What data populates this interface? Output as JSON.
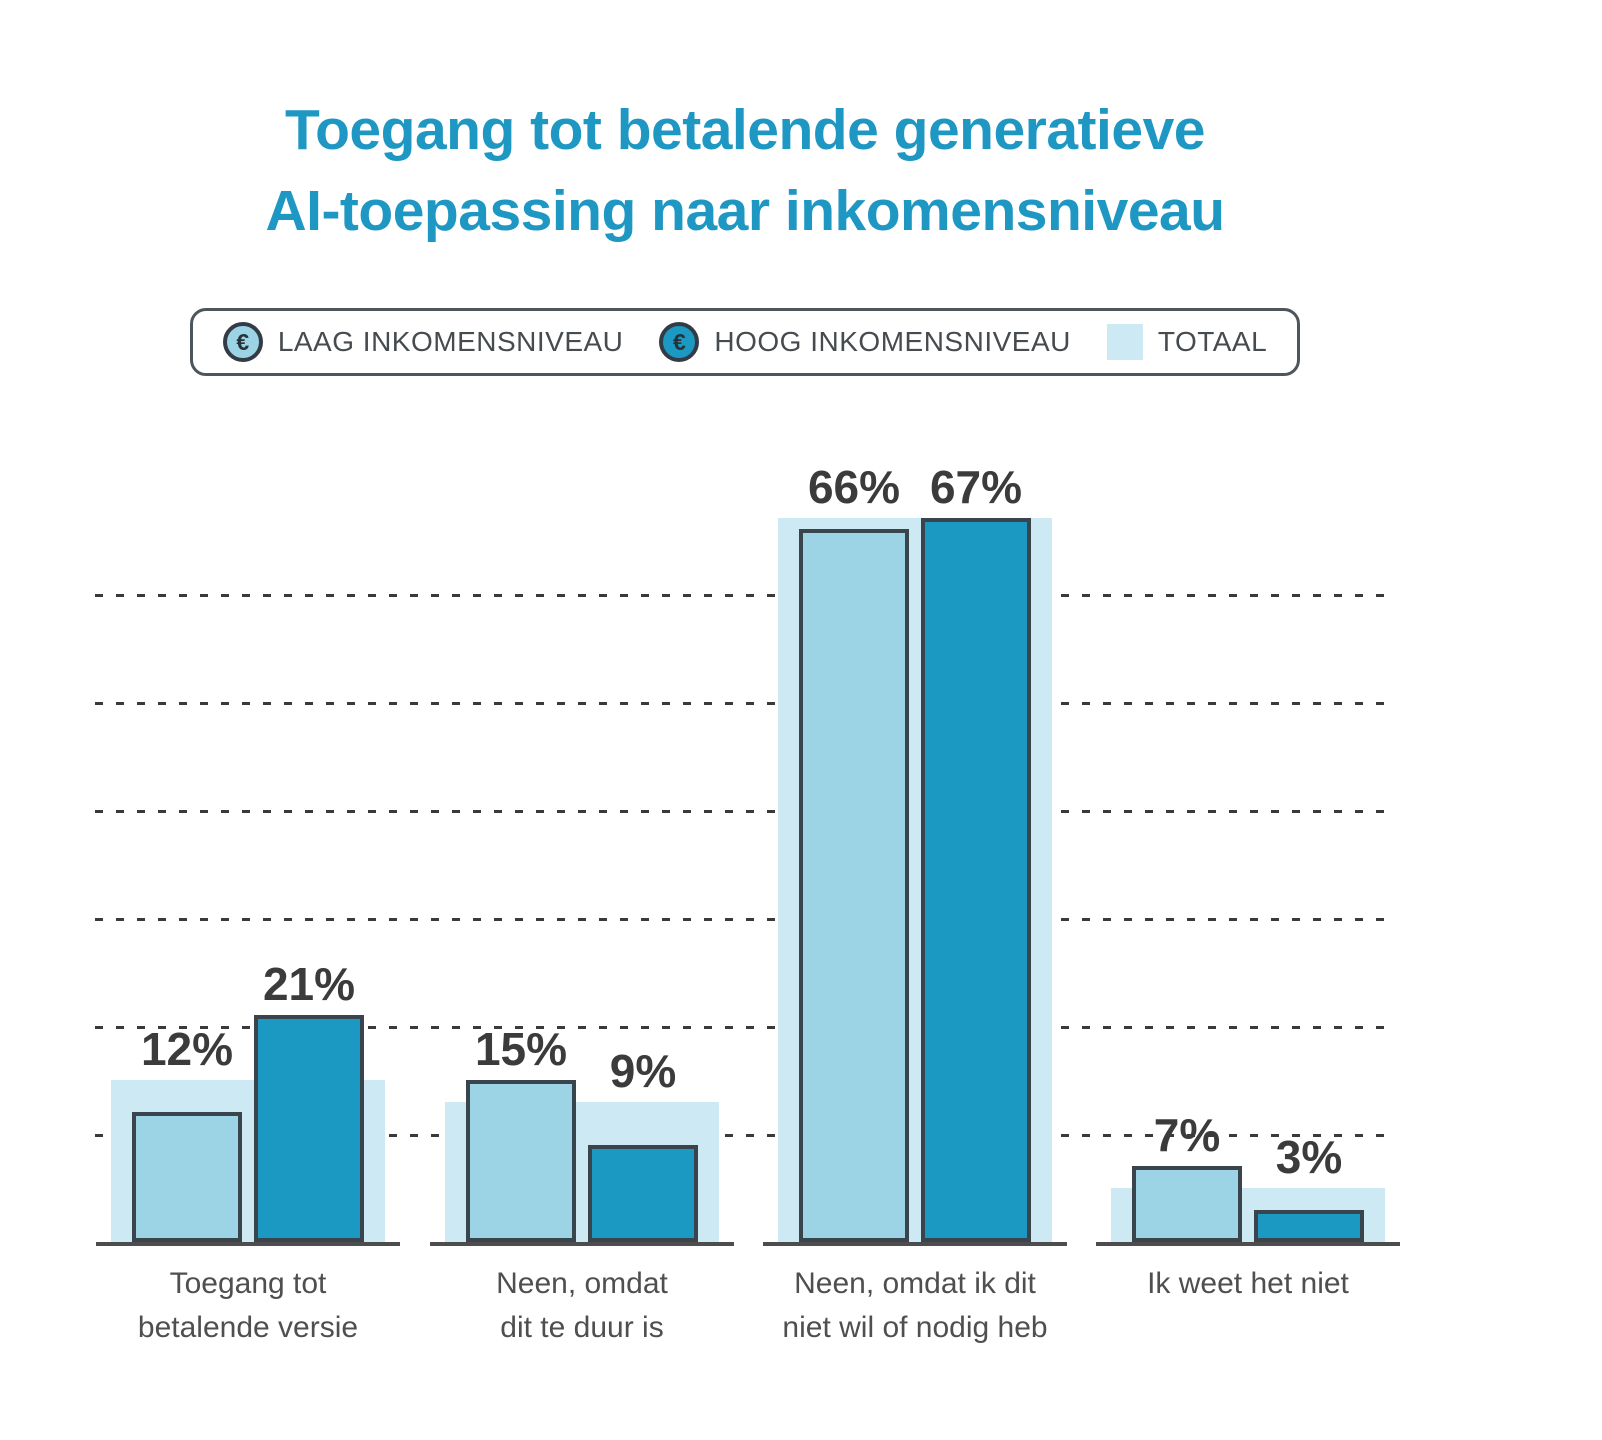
{
  "title": {
    "line1": "Toegang tot betalende generatieve",
    "line2": "AI-toepassing naar inkomensniveau"
  },
  "legend": {
    "euro_symbol": "€",
    "items": [
      {
        "label": "LAAG INKOMENSNIVEAU",
        "icon": "euro-coin-light"
      },
      {
        "label": "HOOG INKOMENSNIVEAU",
        "icon": "euro-coin-dark"
      },
      {
        "label": "TOTAAL",
        "icon": "totaal-swatch"
      }
    ]
  },
  "colors": {
    "title": "#1e97c3",
    "laag": "#9cd4e6",
    "hoog": "#1b99c3",
    "totaal": "#cde9f4",
    "bar_outline": "#39444c",
    "value_label_text": "#3b3b3b",
    "axis_text": "#4f4f4f",
    "gridline": "#3a3a3a",
    "baseline": "#4d4d4d"
  },
  "chart_data": {
    "type": "bar",
    "title": "Toegang tot betalende generatieve AI-toepassing naar inkomensniveau",
    "categories": [
      "Toegang tot betalende versie",
      "Neen, omdat dit te duur is",
      "Neen, omdat ik dit niet wil of nodig heb",
      "Ik weet het niet"
    ],
    "category_lines": [
      [
        "Toegang tot",
        "betalende versie"
      ],
      [
        "Neen, omdat",
        "dit te duur is"
      ],
      [
        "Neen, omdat ik dit",
        "niet wil of nodig heb"
      ],
      [
        "Ik weet het niet"
      ]
    ],
    "series": [
      {
        "name": "LAAG INKOMENSNIVEAU",
        "role": "laag",
        "values": [
          12,
          15,
          66,
          7
        ],
        "color": "#9cd4e6"
      },
      {
        "name": "HOOG INKOMENSNIVEAU",
        "role": "hoog",
        "values": [
          21,
          9,
          67,
          3
        ],
        "color": "#1b99c3"
      },
      {
        "name": "TOTAAL",
        "role": "totaal-background",
        "values": [
          15,
          13,
          67,
          5
        ],
        "color": "#cde9f4"
      }
    ],
    "value_label_format": "{v}%",
    "value_labels": {
      "laag": [
        "12%",
        "15%",
        "66%",
        "7%"
      ],
      "hoog": [
        "21%",
        "9%",
        "67%",
        "3%"
      ]
    },
    "xlabel": "",
    "ylabel": "",
    "ylim": [
      0,
      70
    ],
    "gridline_values": [
      10,
      20,
      30,
      40,
      50,
      60
    ],
    "grid_style": "dashed",
    "y_axis_labels_shown": false,
    "legend_position": "top"
  }
}
